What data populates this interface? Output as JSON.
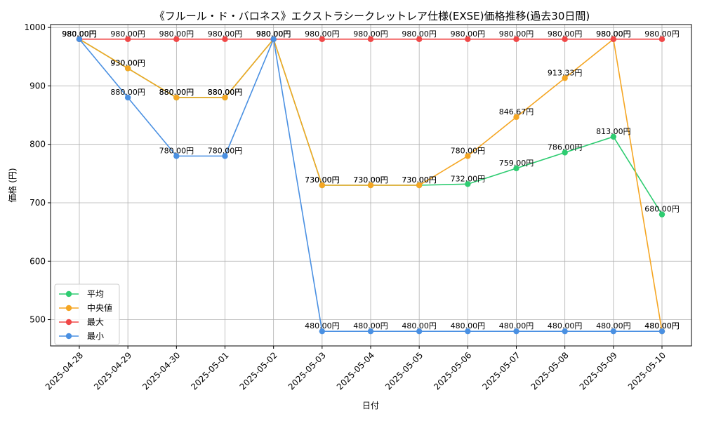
{
  "chart_data": {
    "type": "line",
    "title": "《フルール・ド・バロネス》エクストラシークレットレア仕様(EXSE)価格推移(過去30日間)",
    "xlabel": "日付",
    "ylabel": "価格 (円)",
    "ylim": [
      455,
      1005
    ],
    "yticks": [
      500,
      600,
      700,
      800,
      900,
      1000
    ],
    "grid": true,
    "legend_position": "lower-left",
    "x": [
      "2025-04-28",
      "2025-04-29",
      "2025-04-30",
      "2025-05-01",
      "2025-05-02",
      "2025-05-03",
      "2025-05-04",
      "2025-05-05",
      "2025-05-06",
      "2025-05-07",
      "2025-05-08",
      "2025-05-09",
      "2025-05-10"
    ],
    "value_suffix": "円",
    "series": [
      {
        "name": "平均",
        "color": "#2ecc71",
        "values": [
          980,
          930,
          880,
          880,
          980,
          730,
          730,
          730,
          732,
          759,
          786,
          813,
          680
        ]
      },
      {
        "name": "中央値",
        "color": "#f5a623",
        "values": [
          980,
          930,
          880,
          880,
          980,
          730,
          730,
          730,
          780,
          846.67,
          913.33,
          980,
          480
        ]
      },
      {
        "name": "最大",
        "color": "#f04848",
        "values": [
          980,
          980,
          980,
          980,
          980,
          980,
          980,
          980,
          980,
          980,
          980,
          980,
          980
        ]
      },
      {
        "name": "最小",
        "color": "#4a90e2",
        "values": [
          980,
          880,
          780,
          780,
          980,
          480,
          480,
          480,
          480,
          480,
          480,
          480,
          480
        ]
      }
    ]
  }
}
